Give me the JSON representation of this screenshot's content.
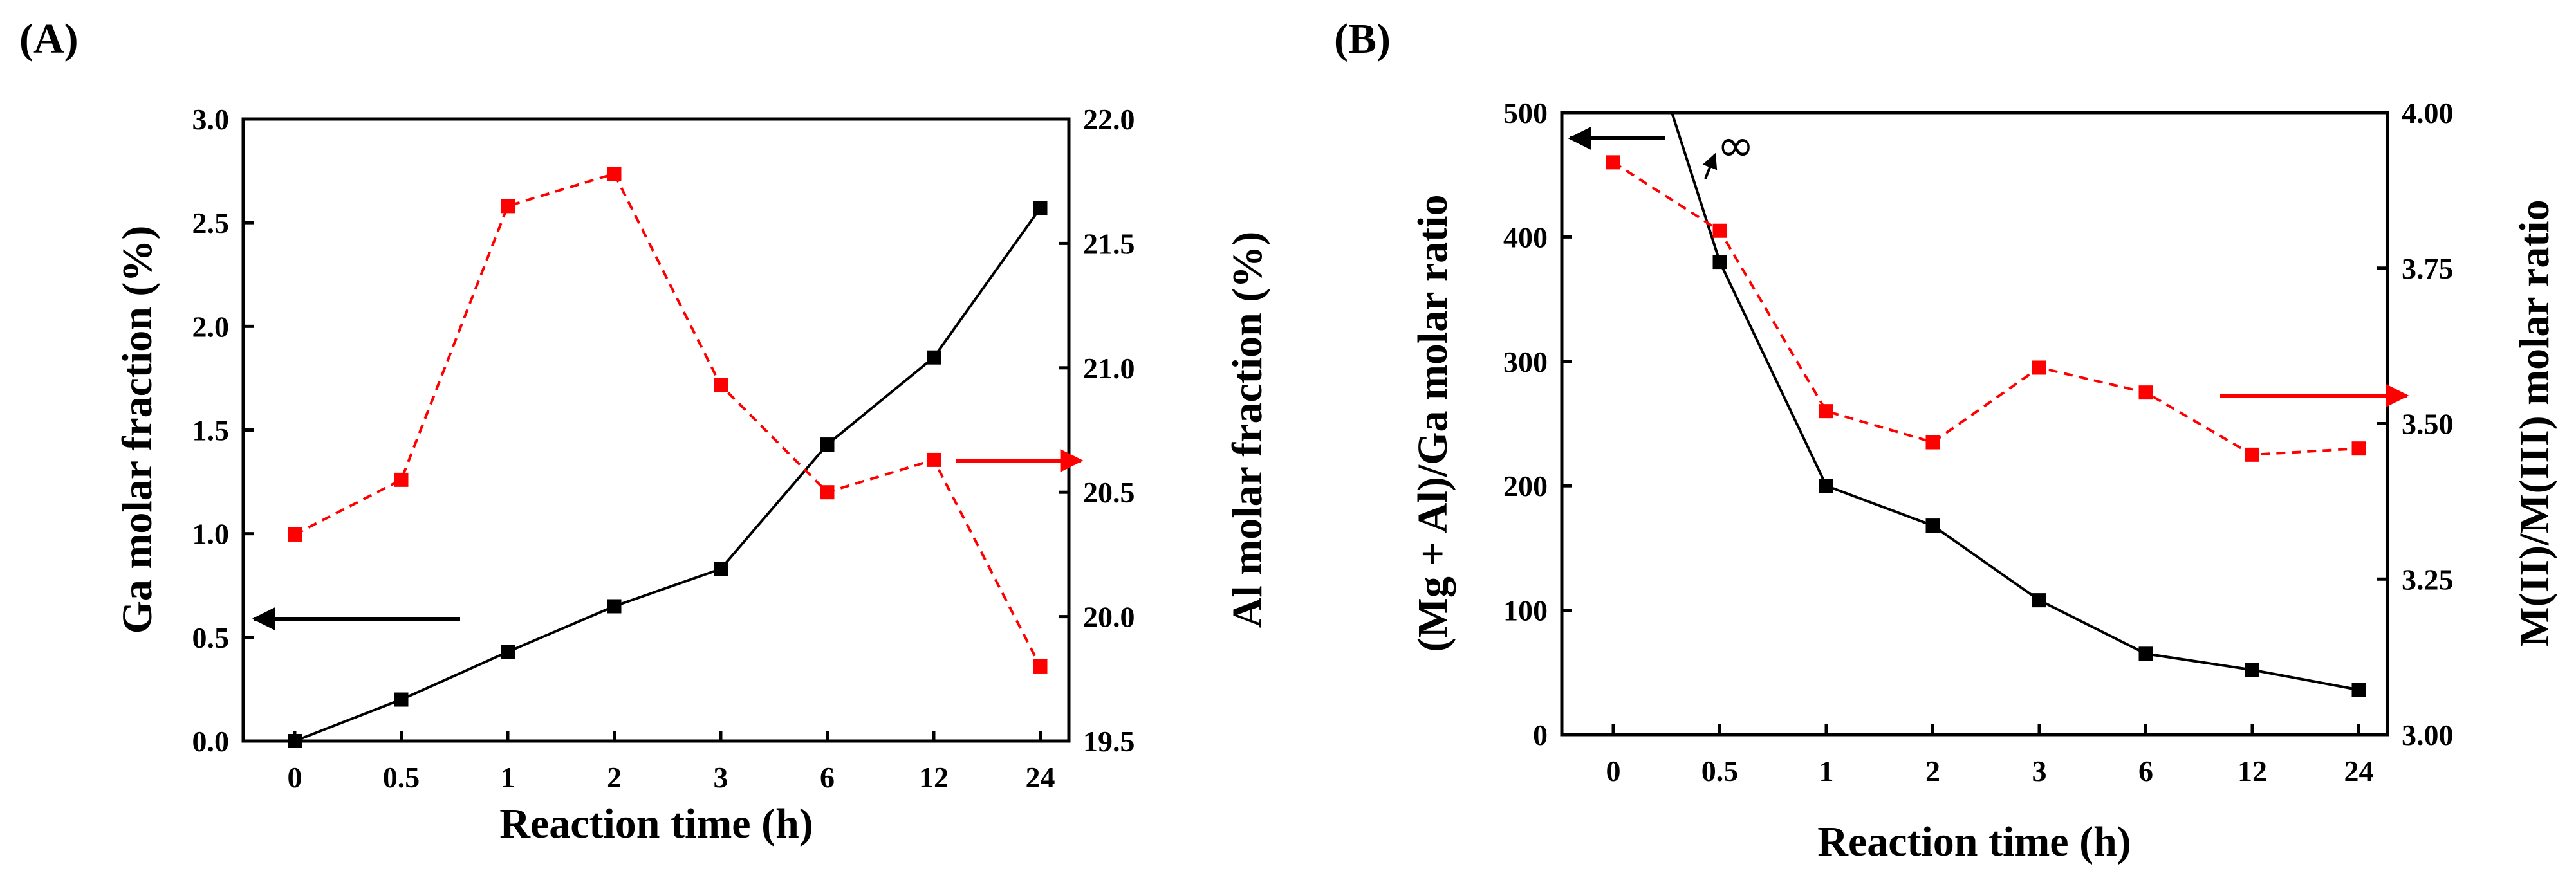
{
  "chart_data": [
    {
      "panel_label": "(A)",
      "type": "line",
      "categories": [
        "0",
        "0.5",
        "1",
        "2",
        "3",
        "6",
        "12",
        "24"
      ],
      "xlabel": "Reaction time (h)",
      "ylabel_left": "Ga molar fraction (%)",
      "ylabel_right": "Al molar fraction (%)",
      "ylim_left": [
        0.0,
        3.0
      ],
      "yticks_left": [
        "0.0",
        "0.5",
        "1.0",
        "1.5",
        "2.0",
        "2.5",
        "3.0"
      ],
      "ylim_right": [
        19.5,
        22.0
      ],
      "yticks_right": [
        "19.5",
        "20.0",
        "20.5",
        "21.0",
        "21.5",
        "22.0"
      ],
      "series": [
        {
          "name": "Ga molar fraction",
          "axis": "left",
          "color": "#000000",
          "style": "solid",
          "values": [
            0.0,
            0.2,
            0.43,
            0.65,
            0.83,
            1.43,
            1.85,
            2.57
          ]
        },
        {
          "name": "Al molar fraction",
          "axis": "right",
          "color": "#ff0000",
          "style": "dashed",
          "values": [
            20.33,
            20.55,
            21.65,
            21.78,
            20.93,
            20.5,
            20.63,
            19.8
          ]
        }
      ],
      "arrows": [
        {
          "points_to": "left-axis",
          "color": "#000000"
        },
        {
          "points_to": "right-axis",
          "color": "#ff0000"
        }
      ]
    },
    {
      "panel_label": "(B)",
      "type": "line",
      "categories": [
        "0",
        "0.5",
        "1",
        "2",
        "3",
        "6",
        "12",
        "24"
      ],
      "xlabel": "Reaction time (h)",
      "ylabel_left": "(Mg + Al)/Ga molar ratio",
      "ylabel_right": "M(II)/M(III) molar ratio",
      "ylim_left": [
        0,
        500
      ],
      "yticks_left": [
        "0",
        "100",
        "200",
        "300",
        "400",
        "500"
      ],
      "ylim_right": [
        3.0,
        4.0
      ],
      "yticks_right": [
        "3.00",
        "3.25",
        "3.50",
        "3.75",
        "4.00"
      ],
      "annotation": "∞",
      "series": [
        {
          "name": "(Mg + Al)/Ga molar ratio",
          "axis": "left",
          "color": "#000000",
          "style": "solid",
          "values": [
            null,
            380,
            200,
            168,
            108,
            65,
            52,
            36
          ]
        },
        {
          "name": "M(II)/M(III) molar ratio",
          "axis": "right",
          "color": "#ff0000",
          "style": "dashed",
          "values": [
            3.92,
            3.81,
            3.52,
            3.47,
            3.59,
            3.55,
            3.45,
            3.46
          ]
        }
      ],
      "arrows": [
        {
          "points_to": "left-axis",
          "color": "#000000"
        },
        {
          "points_to": "right-axis",
          "color": "#ff0000"
        }
      ]
    }
  ]
}
